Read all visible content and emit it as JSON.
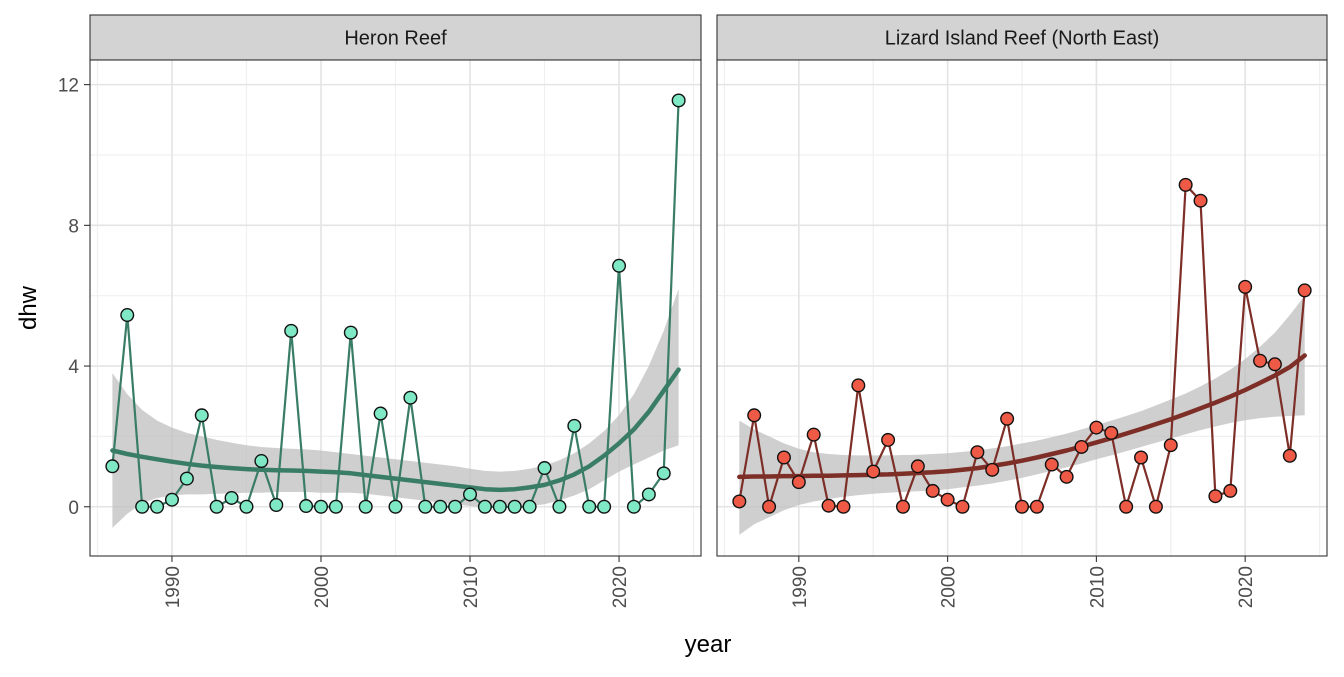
{
  "chart_data": {
    "type": "line",
    "xlabel": "year",
    "ylabel": "dhw",
    "xlim": [
      1984.5,
      2025.5
    ],
    "ylim": [
      -1.4,
      12.7
    ],
    "x_ticks": [
      1990,
      2000,
      2010,
      2020
    ],
    "y_ticks": [
      0,
      4,
      8,
      12
    ],
    "grid": true,
    "tick_label_rotation_x": -90,
    "panels": [
      {
        "label": "Heron Reef",
        "line_color": "#3a7d66",
        "point_fill": "#7fe8c4",
        "trend_color": "#3a7d66",
        "band_color": "#bdbdbd",
        "x": [
          1986,
          1987,
          1988,
          1989,
          1990,
          1991,
          1992,
          1993,
          1994,
          1995,
          1996,
          1997,
          1998,
          1999,
          2000,
          2001,
          2002,
          2003,
          2004,
          2005,
          2006,
          2007,
          2008,
          2009,
          2010,
          2011,
          2012,
          2013,
          2014,
          2015,
          2016,
          2017,
          2018,
          2019,
          2020,
          2021,
          2022,
          2023,
          2024
        ],
        "y": [
          1.15,
          5.45,
          0,
          0,
          0.2,
          0.8,
          2.6,
          0,
          0.25,
          0,
          1.3,
          0.05,
          5.0,
          0.02,
          0,
          0,
          4.95,
          0,
          2.65,
          0,
          3.1,
          0,
          0,
          0,
          0.35,
          0,
          0,
          0,
          0,
          1.1,
          0,
          2.3,
          0,
          0,
          6.85,
          0,
          0.35,
          0.95,
          11.55
        ],
        "trend": [
          1.6,
          1.5,
          1.42,
          1.35,
          1.28,
          1.22,
          1.17,
          1.13,
          1.1,
          1.07,
          1.05,
          1.04,
          1.03,
          1.02,
          1.0,
          0.98,
          0.95,
          0.9,
          0.85,
          0.8,
          0.75,
          0.7,
          0.65,
          0.6,
          0.55,
          0.5,
          0.48,
          0.5,
          0.55,
          0.62,
          0.75,
          0.92,
          1.15,
          1.45,
          1.8,
          2.2,
          2.7,
          3.3,
          3.9
        ],
        "band_upper": [
          3.8,
          3.2,
          2.75,
          2.45,
          2.25,
          2.1,
          2.0,
          1.9,
          1.82,
          1.75,
          1.7,
          1.67,
          1.65,
          1.63,
          1.6,
          1.55,
          1.5,
          1.45,
          1.4,
          1.35,
          1.3,
          1.25,
          1.2,
          1.15,
          1.08,
          1.02,
          1.0,
          1.02,
          1.08,
          1.17,
          1.32,
          1.52,
          1.8,
          2.15,
          2.6,
          3.2,
          4.0,
          5.0,
          6.2
        ],
        "band_lower": [
          -0.6,
          -0.2,
          0.1,
          0.25,
          0.32,
          0.35,
          0.35,
          0.37,
          0.38,
          0.4,
          0.4,
          0.42,
          0.42,
          0.42,
          0.4,
          0.4,
          0.4,
          0.37,
          0.32,
          0.27,
          0.22,
          0.17,
          0.12,
          0.07,
          0.02,
          -0.02,
          -0.05,
          -0.02,
          0.02,
          0.07,
          0.18,
          0.32,
          0.5,
          0.75,
          1.0,
          1.2,
          1.4,
          1.6,
          1.75
        ]
      },
      {
        "label": "Lizard Island Reef (North East)",
        "line_color": "#7d2e27",
        "point_fill": "#ee5a45",
        "trend_color": "#7d2e27",
        "band_color": "#bdbdbd",
        "x": [
          1986,
          1987,
          1988,
          1989,
          1990,
          1991,
          1992,
          1993,
          1994,
          1995,
          1996,
          1997,
          1998,
          1999,
          2000,
          2001,
          2002,
          2003,
          2004,
          2005,
          2006,
          2007,
          2008,
          2009,
          2010,
          2011,
          2012,
          2013,
          2014,
          2015,
          2016,
          2017,
          2018,
          2019,
          2020,
          2021,
          2022,
          2023,
          2024
        ],
        "y": [
          0.15,
          2.6,
          0,
          1.4,
          0.7,
          2.05,
          0.03,
          0,
          3.45,
          1.0,
          1.9,
          0,
          1.15,
          0.45,
          0.2,
          0,
          1.55,
          1.05,
          2.5,
          0,
          0,
          1.2,
          0.85,
          1.7,
          2.25,
          2.1,
          0,
          1.4,
          0,
          1.75,
          9.15,
          8.7,
          0.3,
          0.45,
          6.25,
          4.15,
          4.05,
          1.45,
          6.15
        ],
        "trend": [
          0.85,
          0.86,
          0.86,
          0.87,
          0.87,
          0.88,
          0.88,
          0.89,
          0.9,
          0.91,
          0.92,
          0.94,
          0.96,
          0.98,
          1.01,
          1.05,
          1.1,
          1.16,
          1.23,
          1.31,
          1.4,
          1.5,
          1.6,
          1.71,
          1.83,
          1.95,
          2.08,
          2.21,
          2.35,
          2.49,
          2.64,
          2.8,
          2.96,
          3.13,
          3.32,
          3.52,
          3.73,
          3.97,
          4.3
        ],
        "band_upper": [
          2.45,
          2.2,
          2.0,
          1.8,
          1.65,
          1.55,
          1.5,
          1.47,
          1.46,
          1.46,
          1.46,
          1.47,
          1.48,
          1.5,
          1.52,
          1.56,
          1.6,
          1.66,
          1.72,
          1.8,
          1.88,
          1.98,
          2.08,
          2.2,
          2.32,
          2.45,
          2.58,
          2.72,
          2.88,
          3.05,
          3.22,
          3.42,
          3.65,
          3.9,
          4.2,
          4.55,
          4.95,
          5.45,
          6.0
        ],
        "band_lower": [
          -0.8,
          -0.5,
          -0.3,
          -0.1,
          0.05,
          0.15,
          0.22,
          0.28,
          0.33,
          0.37,
          0.4,
          0.42,
          0.44,
          0.46,
          0.5,
          0.55,
          0.6,
          0.66,
          0.74,
          0.82,
          0.92,
          1.02,
          1.12,
          1.23,
          1.35,
          1.46,
          1.58,
          1.7,
          1.82,
          1.94,
          2.06,
          2.18,
          2.28,
          2.38,
          2.46,
          2.52,
          2.56,
          2.58,
          2.6
        ]
      }
    ]
  }
}
